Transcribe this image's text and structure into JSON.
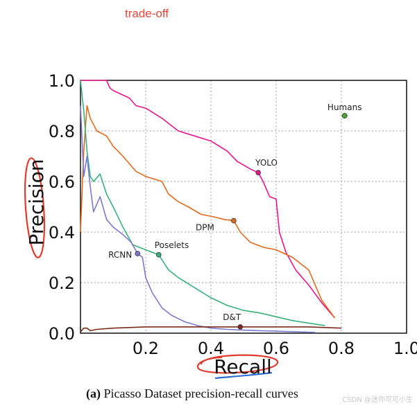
{
  "annotation_note": "trade-off",
  "caption": {
    "prefix": "(a)",
    "text": "Picasso Dataset precision-recall curves"
  },
  "watermark": "CSDN @迷你可可小生",
  "colors": {
    "YOLO": "#e8168c",
    "DPM": "#e36a1c",
    "Poselets": "#38b07a",
    "RCNN": "#7a78d0",
    "D&T": "#7a2a18",
    "Humans": "#4aa332",
    "grid": "#9e9e9e",
    "handwriting_red": "#e23b2e",
    "handwriting_blue": "#2a6bd6"
  },
  "chart_data": {
    "type": "line",
    "title": "",
    "xlabel": "Recall",
    "ylabel": "Precision",
    "xlim": [
      0.0,
      1.0
    ],
    "ylim": [
      0.0,
      1.0
    ],
    "xticks": [
      "0.2",
      "0.4",
      "0.6",
      "0.8",
      "1.0"
    ],
    "xtick_values": [
      0.2,
      0.4,
      0.6,
      0.8,
      1.0
    ],
    "yticks": [
      "0.0",
      "0.2",
      "0.4",
      "0.6",
      "0.8",
      "1.0"
    ],
    "ytick_values": [
      0.0,
      0.2,
      0.4,
      0.6,
      0.8,
      1.0
    ],
    "grid": true,
    "series": [
      {
        "name": "YOLO",
        "label_point": [
          0.545,
          0.635
        ],
        "x": [
          0.0,
          0.01,
          0.02,
          0.05,
          0.08,
          0.09,
          0.1,
          0.15,
          0.17,
          0.2,
          0.25,
          0.3,
          0.35,
          0.4,
          0.45,
          0.48,
          0.52,
          0.545,
          0.56,
          0.58,
          0.6,
          0.61,
          0.63,
          0.66,
          0.7,
          0.74,
          0.78
        ],
        "y": [
          1.0,
          1.0,
          1.0,
          1.0,
          1.0,
          0.97,
          0.96,
          0.93,
          0.9,
          0.89,
          0.85,
          0.8,
          0.78,
          0.76,
          0.72,
          0.68,
          0.65,
          0.635,
          0.6,
          0.54,
          0.53,
          0.4,
          0.32,
          0.25,
          0.19,
          0.12,
          0.06
        ]
      },
      {
        "name": "DPM",
        "label_point": [
          0.47,
          0.445
        ],
        "x": [
          0.0,
          0.01,
          0.02,
          0.03,
          0.05,
          0.08,
          0.1,
          0.13,
          0.17,
          0.2,
          0.25,
          0.27,
          0.3,
          0.33,
          0.37,
          0.41,
          0.44,
          0.47,
          0.49,
          0.52,
          0.56,
          0.6,
          0.65,
          0.7,
          0.74,
          0.78
        ],
        "y": [
          0.4,
          0.72,
          0.9,
          0.85,
          0.8,
          0.78,
          0.74,
          0.7,
          0.64,
          0.62,
          0.6,
          0.55,
          0.52,
          0.5,
          0.47,
          0.46,
          0.45,
          0.445,
          0.4,
          0.36,
          0.34,
          0.33,
          0.3,
          0.25,
          0.13,
          0.06
        ]
      },
      {
        "name": "Poselets",
        "label_point": [
          0.24,
          0.31
        ],
        "x": [
          0.0,
          0.01,
          0.02,
          0.03,
          0.04,
          0.06,
          0.08,
          0.1,
          0.13,
          0.16,
          0.2,
          0.24,
          0.27,
          0.3,
          0.35,
          0.4,
          0.45,
          0.5,
          0.55,
          0.6,
          0.65,
          0.7,
          0.75
        ],
        "y": [
          1.0,
          0.88,
          0.72,
          0.62,
          0.6,
          0.63,
          0.55,
          0.5,
          0.42,
          0.35,
          0.33,
          0.31,
          0.25,
          0.22,
          0.18,
          0.14,
          0.11,
          0.09,
          0.08,
          0.065,
          0.05,
          0.04,
          0.03
        ]
      },
      {
        "name": "RCNN",
        "label_point": [
          0.175,
          0.315
        ],
        "x": [
          0.0,
          0.01,
          0.02,
          0.03,
          0.04,
          0.06,
          0.08,
          0.1,
          0.13,
          0.155,
          0.175,
          0.19,
          0.2,
          0.22,
          0.25,
          0.28,
          0.32,
          0.36,
          0.4,
          0.45,
          0.5,
          0.55,
          0.6,
          0.65,
          0.7,
          0.72
        ],
        "y": [
          0.9,
          0.62,
          0.7,
          0.58,
          0.48,
          0.54,
          0.45,
          0.42,
          0.39,
          0.36,
          0.315,
          0.3,
          0.22,
          0.16,
          0.1,
          0.07,
          0.045,
          0.03,
          0.02,
          0.015,
          0.012,
          0.01,
          0.008,
          0.006,
          0.004,
          0.003
        ]
      },
      {
        "name": "D&T",
        "label_point": [
          0.49,
          0.025
        ],
        "x": [
          0.0,
          0.01,
          0.02,
          0.03,
          0.05,
          0.1,
          0.2,
          0.3,
          0.4,
          0.49,
          0.6,
          0.7,
          0.8
        ],
        "y": [
          0.005,
          0.02,
          0.02,
          0.01,
          0.015,
          0.02,
          0.025,
          0.025,
          0.025,
          0.025,
          0.025,
          0.025,
          0.02
        ]
      }
    ],
    "points": [
      {
        "name": "Humans",
        "x": 0.81,
        "y": 0.86
      }
    ]
  }
}
